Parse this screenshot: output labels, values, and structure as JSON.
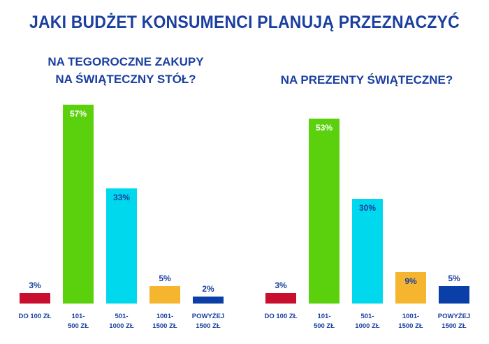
{
  "title": "JAKI BUDŻET KONSUMENCI PLANUJĄ PRZEZNACZYĆ",
  "colors": {
    "text": "#1a3fa0",
    "bars": [
      "#c8102e",
      "#5bd10d",
      "#00d8ee",
      "#f6b52e",
      "#0a3fa8"
    ]
  },
  "chart_data": [
    {
      "type": "bar",
      "title": "NA TEGOROCZNE ZAKUPY NA ŚWIĄTECZNY STÓŁ?",
      "title_lines": [
        "NA TEGOROCZNE ZAKUPY",
        "NA ŚWIĄTECZNY STÓŁ?"
      ],
      "categories": [
        [
          "DO 100 ZŁ"
        ],
        [
          "101-",
          "500 ZŁ"
        ],
        [
          "501-",
          "1000 ZŁ"
        ],
        [
          "1001-",
          "1500 ZŁ"
        ],
        [
          "POWYŻEJ",
          "1500 ZŁ"
        ]
      ],
      "values": [
        3,
        57,
        33,
        5,
        2
      ],
      "labels": [
        "3%",
        "57%",
        "33%",
        "5%",
        "2%"
      ],
      "unit": "%"
    },
    {
      "type": "bar",
      "title": "NA PREZENTY ŚWIĄTECZNE?",
      "title_lines": [
        "NA PREZENTY ŚWIĄTECZNE?"
      ],
      "categories": [
        [
          "DO 100 ZŁ"
        ],
        [
          "101-",
          "500 ZŁ"
        ],
        [
          "501-",
          "1000 ZŁ"
        ],
        [
          "1001-",
          "1500 ZŁ"
        ],
        [
          "POWYŻEJ",
          "1500 ZŁ"
        ]
      ],
      "values": [
        3,
        53,
        30,
        9,
        5
      ],
      "labels": [
        "3%",
        "53%",
        "30%",
        "9%",
        "5%"
      ],
      "unit": "%"
    }
  ]
}
